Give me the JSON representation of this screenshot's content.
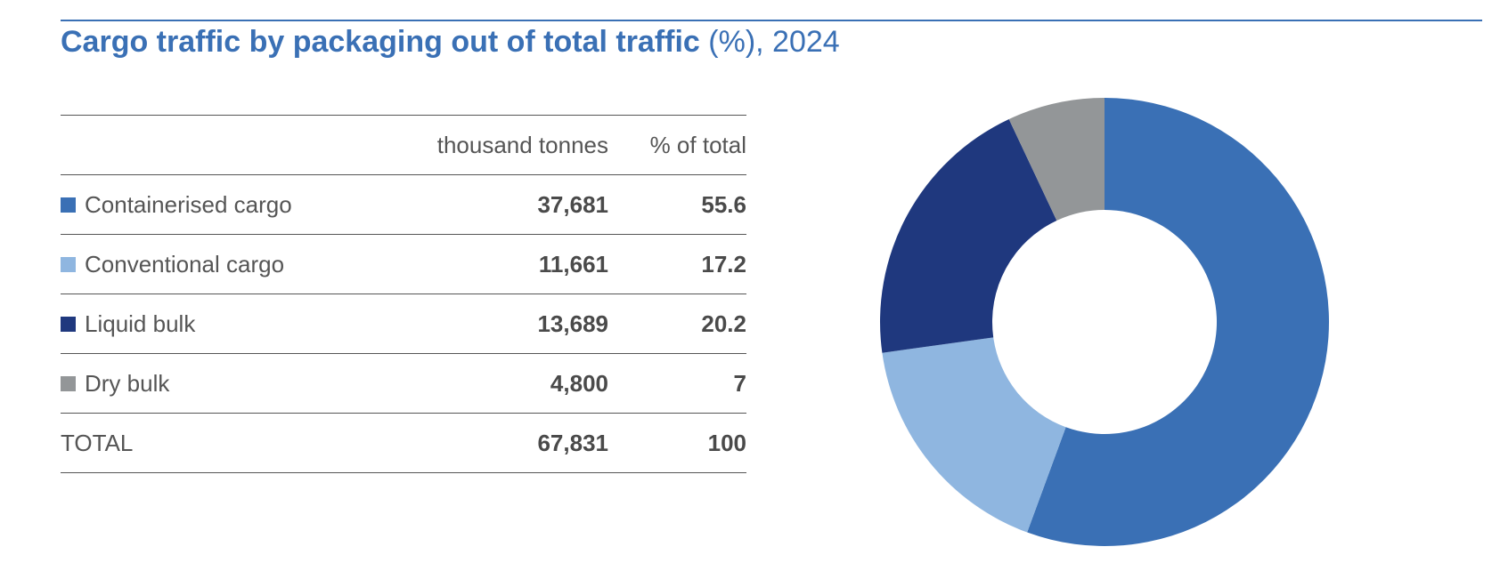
{
  "title": {
    "bold": "Cargo traffic by packaging out of total traffic",
    "rest": " (%), 2024"
  },
  "table": {
    "headers": {
      "label": "",
      "tonnes": "thousand tonnes",
      "pct": "% of total"
    },
    "rows": [
      {
        "label": "Containerised cargo",
        "tonnes": "37,681",
        "pct": "55.6",
        "color": "#3a70b5"
      },
      {
        "label": "Conventional cargo",
        "tonnes": "11,661",
        "pct": "17.2",
        "color": "#8fb6e0"
      },
      {
        "label": "Liquid bulk",
        "tonnes": "13,689",
        "pct": "20.2",
        "color": "#1f387e"
      },
      {
        "label": "Dry bulk",
        "tonnes": "4,800",
        "pct": "7",
        "color": "#939698"
      }
    ],
    "total": {
      "label": "TOTAL",
      "tonnes": "67,831",
      "pct": "100"
    }
  },
  "chart_data": {
    "type": "pie",
    "variant": "donut",
    "title": "Cargo traffic by packaging out of total traffic (%), 2024",
    "categories": [
      "Containerised cargo",
      "Conventional cargo",
      "Liquid bulk",
      "Dry bulk"
    ],
    "values": [
      55.6,
      17.2,
      20.2,
      7
    ],
    "colors": [
      "#3a70b5",
      "#8fb6e0",
      "#1f387e",
      "#939698"
    ],
    "start": "top",
    "direction": "clockwise"
  }
}
